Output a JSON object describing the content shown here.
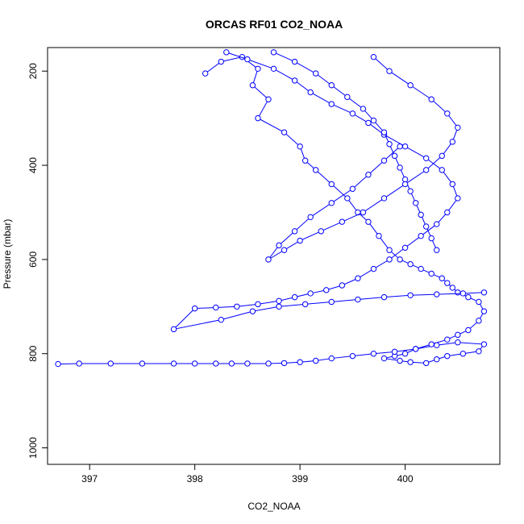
{
  "chart_data": {
    "type": "scatter",
    "title": "ORCAS RF01 CO2_NOAA",
    "xlabel": "CO2_NOAA",
    "ylabel": "Pressure (mbar)",
    "xlim": [
      396.6,
      400.9
    ],
    "ylim": [
      1035,
      150
    ],
    "y_reversed": true,
    "xticks": [
      397,
      398,
      399,
      400
    ],
    "yticks": [
      200,
      400,
      600,
      800,
      1000
    ],
    "grid": false,
    "legend": "none",
    "marker": "open-circle",
    "connect_points": true,
    "color": "#0000ff",
    "series": [
      {
        "x": [
          398.1,
          398.25,
          398.45,
          398.6,
          398.55,
          398.7,
          398.6,
          398.85,
          399.0,
          399.05,
          399.15,
          399.3,
          399.45,
          399.55,
          399.65,
          399.75,
          399.85,
          399.95,
          400.05,
          400.15,
          400.25,
          400.35,
          400.4,
          400.45,
          400.5,
          400.6,
          400.7,
          400.75,
          400.7,
          400.6,
          400.5,
          400.4,
          400.25,
          400.1,
          400.0,
          399.9,
          399.8,
          399.95,
          400.05,
          400.2,
          400.3,
          400.4,
          400.55,
          400.7,
          400.75,
          400.5,
          400.3,
          400.1,
          399.9,
          399.7,
          399.5,
          399.3,
          399.15,
          399.0,
          398.85,
          398.7,
          398.5,
          398.35,
          398.2,
          398.0,
          397.8,
          397.5,
          397.2,
          396.9,
          396.7
        ],
        "y": [
          205,
          180,
          170,
          195,
          230,
          260,
          300,
          330,
          360,
          390,
          410,
          440,
          470,
          500,
          520,
          550,
          580,
          600,
          610,
          620,
          630,
          640,
          650,
          660,
          670,
          680,
          690,
          710,
          730,
          750,
          760,
          770,
          780,
          790,
          800,
          805,
          810,
          815,
          818,
          820,
          812,
          805,
          800,
          795,
          780,
          776,
          782,
          790,
          796,
          800,
          805,
          810,
          815,
          818,
          820,
          821,
          821,
          821,
          821,
          821,
          821,
          821,
          821,
          821,
          822
        ]
      },
      {
        "x": [
          398.3,
          398.5,
          398.75,
          398.95,
          399.1,
          399.3,
          399.5,
          399.65,
          399.8,
          400.0,
          400.2,
          400.35,
          400.45,
          400.5,
          400.4,
          400.3,
          400.15,
          400.0,
          399.85,
          399.7,
          399.55,
          399.4,
          399.25,
          399.1,
          398.95,
          398.8,
          398.6,
          398.4,
          398.2,
          398.0,
          397.8,
          398.25,
          398.55,
          398.8,
          399.05,
          399.3,
          399.55,
          399.8,
          400.05,
          400.3,
          400.55,
          400.75
        ],
        "y": [
          160,
          175,
          195,
          220,
          245,
          270,
          290,
          310,
          335,
          360,
          385,
          410,
          440,
          470,
          500,
          525,
          550,
          575,
          600,
          620,
          640,
          655,
          665,
          672,
          680,
          688,
          695,
          700,
          702,
          704,
          748,
          728,
          710,
          700,
          695,
          690,
          685,
          680,
          676,
          674,
          672,
          670
        ]
      },
      {
        "x": [
          398.75,
          398.95,
          399.15,
          399.3,
          399.45,
          399.6,
          399.7,
          399.8,
          399.85,
          399.9,
          399.95,
          400.0,
          400.05,
          400.1,
          400.15,
          400.2,
          400.25,
          400.3
        ],
        "y": [
          160,
          180,
          205,
          230,
          255,
          280,
          305,
          330,
          355,
          380,
          405,
          430,
          455,
          480,
          505,
          530,
          555,
          580
        ]
      },
      {
        "x": [
          399.7,
          399.85,
          400.05,
          400.25,
          400.4,
          400.5,
          400.45,
          400.35,
          400.2,
          400.0,
          399.8,
          399.6,
          399.4,
          399.2,
          399.0,
          398.85,
          398.7,
          398.8,
          398.95,
          399.1,
          399.3,
          399.5,
          399.65,
          399.8,
          399.95
        ],
        "y": [
          170,
          200,
          230,
          260,
          290,
          320,
          350,
          380,
          410,
          440,
          470,
          500,
          520,
          540,
          560,
          580,
          600,
          570,
          540,
          510,
          480,
          450,
          420,
          390,
          360
        ]
      }
    ]
  }
}
